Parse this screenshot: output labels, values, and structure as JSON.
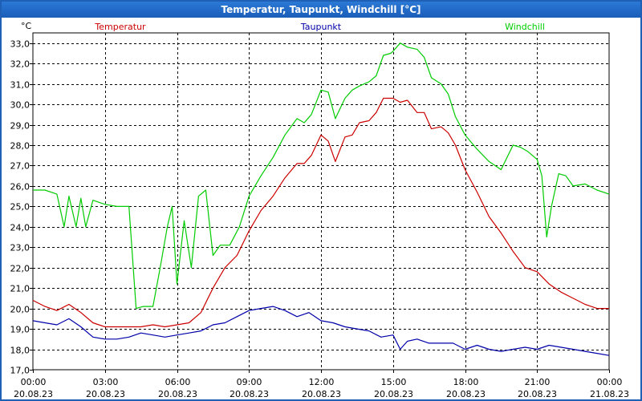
{
  "window": {
    "title": "Temperatur, Taupunkt, Windchill [°C]"
  },
  "chart_data": {
    "type": "line",
    "title": "Temperatur, Taupunkt, Windchill [°C]",
    "ylabel": "°C",
    "xlabel": "",
    "ylim": [
      17.0,
      33.5
    ],
    "xlim_hours": [
      0,
      24
    ],
    "yticks": [
      "17,0",
      "18,0",
      "19,0",
      "20,0",
      "21,0",
      "22,0",
      "23,0",
      "24,0",
      "25,0",
      "26,0",
      "27,0",
      "28,0",
      "29,0",
      "30,0",
      "31,0",
      "32,0",
      "33,0"
    ],
    "xticks": [
      {
        "time": "00:00",
        "date": "20.08.23"
      },
      {
        "time": "03:00",
        "date": "20.08.23"
      },
      {
        "time": "06:00",
        "date": "20.08.23"
      },
      {
        "time": "09:00",
        "date": "20.08.23"
      },
      {
        "time": "12:00",
        "date": "20.08.23"
      },
      {
        "time": "15:00",
        "date": "20.08.23"
      },
      {
        "time": "18:00",
        "date": "20.08.23"
      },
      {
        "time": "21:00",
        "date": "20.08.23"
      },
      {
        "time": "00:00",
        "date": "21.08.23"
      }
    ],
    "grid": true,
    "series": [
      {
        "name": "Temperatur",
        "color": "#cc0000",
        "hours": [
          0,
          0.5,
          1,
          1.5,
          2,
          2.5,
          3,
          3.5,
          4,
          4.5,
          5,
          5.5,
          6,
          6.5,
          7,
          7.5,
          8,
          8.5,
          9,
          9.5,
          10,
          10.5,
          11,
          11.3,
          11.6,
          12,
          12.3,
          12.6,
          13,
          13.3,
          13.6,
          14,
          14.3,
          14.6,
          15,
          15.3,
          15.6,
          16,
          16.3,
          16.6,
          17,
          17.3,
          17.6,
          18,
          18.5,
          19,
          19.5,
          20,
          20.5,
          21,
          21.5,
          22,
          22.5,
          23,
          23.5,
          24
        ],
        "values": [
          20.4,
          20.1,
          19.9,
          20.2,
          19.8,
          19.3,
          19.1,
          19.1,
          19.1,
          19.1,
          19.2,
          19.1,
          19.2,
          19.3,
          19.8,
          21.0,
          22.0,
          22.6,
          23.8,
          24.8,
          25.5,
          26.4,
          27.1,
          27.1,
          27.5,
          28.5,
          28.2,
          27.2,
          28.4,
          28.5,
          29.1,
          29.2,
          29.6,
          30.3,
          30.3,
          30.1,
          30.2,
          29.6,
          29.6,
          28.8,
          28.9,
          28.6,
          28.0,
          26.8,
          25.7,
          24.5,
          23.7,
          22.8,
          22.0,
          21.8,
          21.2,
          20.8,
          20.5,
          20.2,
          20.0,
          20.0
        ],
        "label_position": "top-left"
      },
      {
        "name": "Taupunkt",
        "color": "#0000aa",
        "hours": [
          0,
          0.5,
          1,
          1.5,
          2,
          2.5,
          3,
          3.5,
          4,
          4.5,
          5,
          5.5,
          6,
          6.5,
          7,
          7.5,
          8,
          8.5,
          9,
          9.5,
          10,
          10.5,
          11,
          11.5,
          12,
          12.5,
          13,
          13.5,
          14,
          14.5,
          15,
          15.3,
          15.6,
          16,
          16.5,
          17,
          17.5,
          18,
          18.5,
          19,
          19.5,
          20,
          20.5,
          21,
          21.5,
          22,
          22.5,
          23,
          23.5,
          24
        ],
        "values": [
          19.4,
          19.3,
          19.2,
          19.5,
          19.1,
          18.6,
          18.5,
          18.5,
          18.6,
          18.8,
          18.7,
          18.6,
          18.7,
          18.8,
          18.9,
          19.2,
          19.3,
          19.6,
          19.9,
          20.0,
          20.1,
          19.9,
          19.6,
          19.8,
          19.4,
          19.3,
          19.1,
          19.0,
          18.9,
          18.6,
          18.7,
          18.0,
          18.4,
          18.5,
          18.3,
          18.3,
          18.3,
          18.0,
          18.2,
          18.0,
          17.9,
          18.0,
          18.1,
          18.0,
          18.2,
          18.1,
          18.0,
          17.9,
          17.8,
          17.7
        ],
        "label_position": "top-center"
      },
      {
        "name": "Windchill",
        "color": "#00cc00",
        "hours": [
          0,
          0.5,
          1,
          1.3,
          1.5,
          1.8,
          2,
          2.2,
          2.5,
          3,
          3.5,
          4,
          4.3,
          4.6,
          5,
          5.3,
          5.6,
          5.8,
          6,
          6.3,
          6.6,
          6.9,
          7.2,
          7.5,
          7.8,
          8.2,
          8.6,
          9,
          9.5,
          10,
          10.5,
          11,
          11.3,
          11.6,
          12,
          12.3,
          12.6,
          13,
          13.3,
          13.6,
          14,
          14.3,
          14.6,
          14.9,
          15,
          15.3,
          15.6,
          16,
          16.3,
          16.6,
          17,
          17.3,
          17.6,
          18,
          18.5,
          19,
          19.5,
          20,
          20.3,
          20.6,
          21,
          21.2,
          21.4,
          21.6,
          21.9,
          22.2,
          22.5,
          23,
          23.5,
          24
        ],
        "values": [
          25.8,
          25.8,
          25.6,
          24.0,
          25.5,
          24.0,
          25.4,
          24.0,
          25.3,
          25.1,
          25.0,
          25.0,
          20.0,
          20.1,
          20.1,
          22.0,
          24.0,
          25.0,
          21.2,
          24.3,
          22.0,
          25.5,
          25.8,
          22.6,
          23.1,
          23.1,
          24.0,
          25.5,
          26.5,
          27.4,
          28.5,
          29.3,
          29.1,
          29.5,
          30.7,
          30.6,
          29.3,
          30.3,
          30.7,
          30.9,
          31.1,
          31.4,
          32.4,
          32.5,
          32.6,
          33.0,
          32.8,
          32.7,
          32.3,
          31.3,
          31.0,
          30.5,
          29.4,
          28.5,
          27.8,
          27.2,
          26.8,
          28.0,
          27.9,
          27.7,
          27.3,
          26.5,
          23.5,
          25.0,
          26.6,
          26.5,
          26.0,
          26.1,
          25.8,
          25.6
        ],
        "label_position": "top-right"
      }
    ]
  }
}
